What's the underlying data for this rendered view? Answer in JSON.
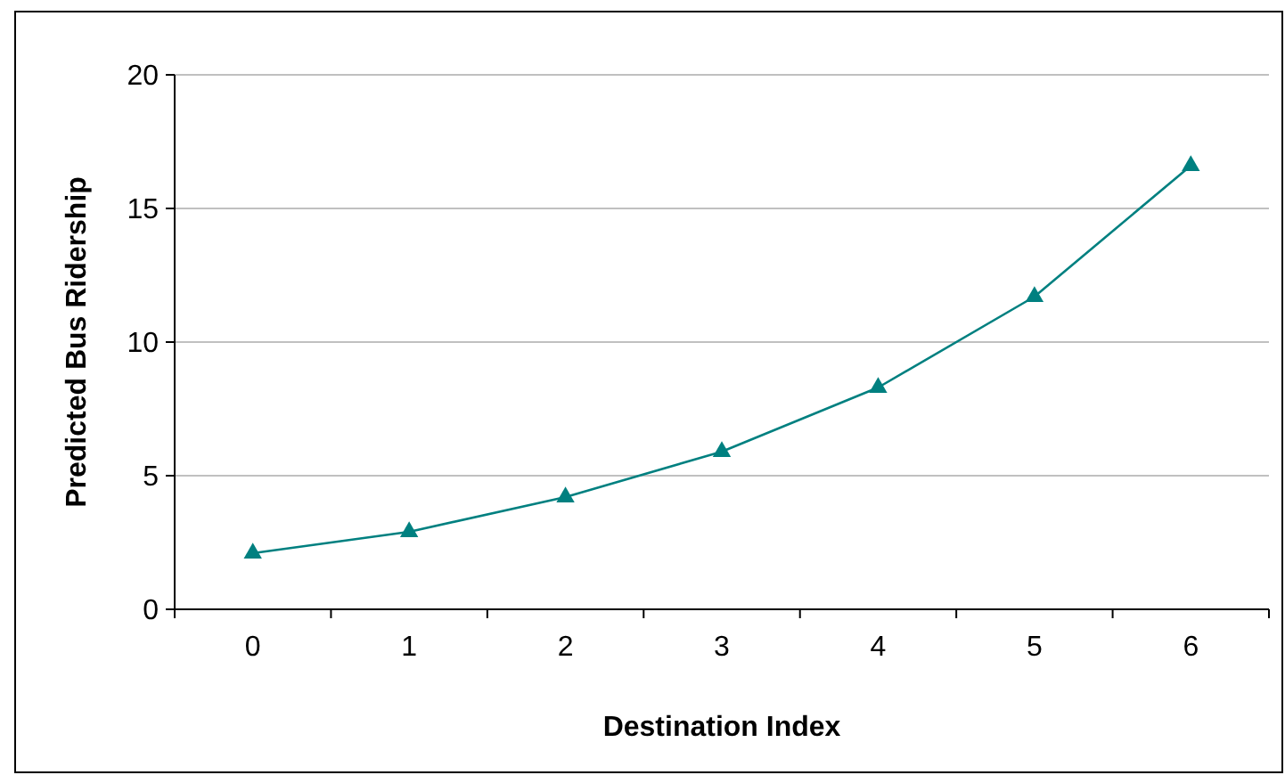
{
  "chart_data": {
    "type": "line",
    "xlabel": "Destination Index",
    "ylabel": "Predicted Bus Ridership",
    "categories": [
      "0",
      "1",
      "2",
      "3",
      "4",
      "5",
      "6"
    ],
    "series": [
      {
        "color": "#008080",
        "values": [
          2.1,
          2.9,
          4.2,
          5.9,
          8.3,
          11.7,
          16.6
        ]
      }
    ],
    "ylim": [
      0,
      20
    ],
    "yticks": [
      0,
      5,
      10,
      15,
      20
    ],
    "grid": "y",
    "marker": "triangle",
    "line_style": "solid"
  }
}
